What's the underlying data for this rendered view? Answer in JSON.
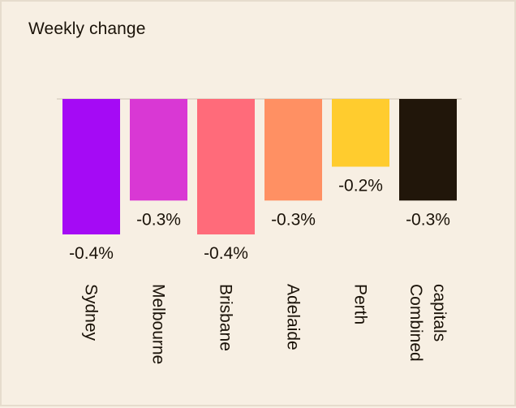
{
  "chart_data": {
    "type": "bar",
    "title": "Weekly change",
    "categories": [
      [
        "Sydney"
      ],
      [
        "Melbourne"
      ],
      [
        "Brisbane"
      ],
      [
        "Adelaide"
      ],
      [
        "Perth"
      ],
      [
        "Combined",
        "capitals"
      ]
    ],
    "values": [
      -0.4,
      -0.3,
      -0.4,
      -0.3,
      -0.2,
      -0.3
    ],
    "value_labels": [
      "-0.4%",
      "-0.3%",
      "-0.4%",
      "-0.3%",
      "-0.2%",
      "-0.3%"
    ],
    "colors": [
      "#a50af5",
      "#d938d4",
      "#ff6b7a",
      "#ff9063",
      "#ffcc2e",
      "#21160a"
    ],
    "ylim": [
      -0.4,
      0
    ],
    "grid": false,
    "legend": "none"
  }
}
